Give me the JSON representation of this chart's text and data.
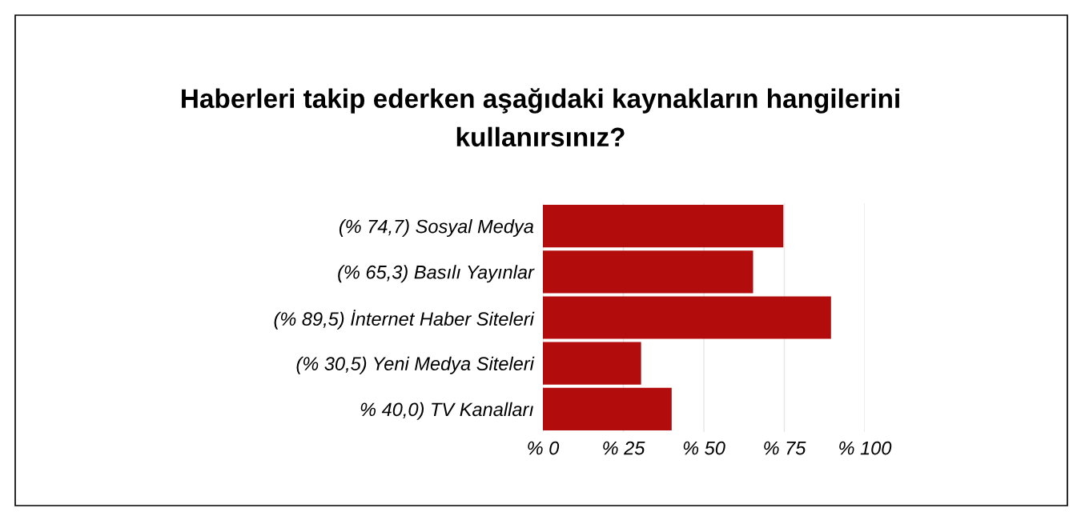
{
  "chart_data": {
    "type": "bar",
    "orientation": "horizontal",
    "title": "Haberleri takip ederken aşağıdaki kaynakların hangilerini\nkullanırsınız?",
    "categories": [
      "(% 74,7) Sosyal Medya",
      "(% 65,3) Basılı Yayınlar",
      "(% 89,5) İnternet Haber Siteleri",
      "(% 30,5) Yeni Medya Siteleri",
      "% 40,0) TV Kanalları"
    ],
    "values": [
      74.7,
      65.3,
      89.5,
      30.5,
      40.0
    ],
    "color": "#b30c0c",
    "xlim": [
      0,
      100
    ],
    "xticks": [
      {
        "value": 0,
        "label": "% 0"
      },
      {
        "value": 25,
        "label": "% 25"
      },
      {
        "value": 50,
        "label": "% 50"
      },
      {
        "value": 75,
        "label": "% 75"
      },
      {
        "value": 100,
        "label": "% 100"
      }
    ],
    "grid": "x"
  }
}
